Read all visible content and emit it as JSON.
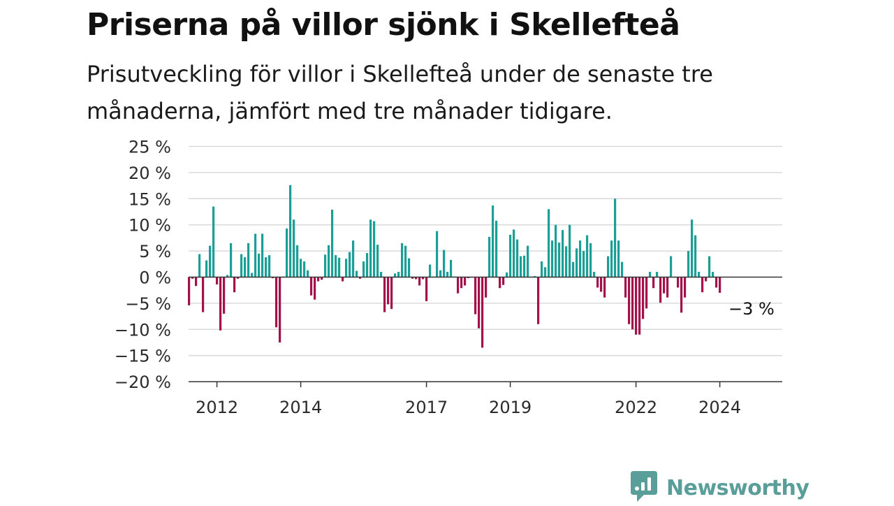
{
  "header": {
    "title": "Priserna på villor sjönk i Skellefteå",
    "subtitle": "Prisutveckling för villor i Skellefteå under de senaste tre månaderna, jämfört med tre månader tidigare."
  },
  "brand": {
    "name": "Newsworthy",
    "icon": "newsworthy-logo-icon",
    "color": "#5a9e9a"
  },
  "chart_data": {
    "type": "bar",
    "title": "Priserna på villor sjönk i Skellefteå",
    "subtitle": "Prisutveckling för villor i Skellefteå under de senaste tre månaderna, jämfört med tre månader tidigare.",
    "ylim": [
      -20,
      25
    ],
    "yticks": [
      25,
      20,
      15,
      10,
      5,
      0,
      -5,
      -10,
      -15,
      -20
    ],
    "ytick_labels": [
      "25 %",
      "20 %",
      "15 %",
      "10 %",
      "5 %",
      "0 %",
      "−5 %",
      "−10 %",
      "−15 %",
      "−20 %"
    ],
    "xticks": [
      {
        "label": "2012",
        "index": 8
      },
      {
        "label": "2014",
        "index": 32
      },
      {
        "label": "2017",
        "index": 68
      },
      {
        "label": "2019",
        "index": 92
      },
      {
        "label": "2022",
        "index": 128
      },
      {
        "label": "2024",
        "index": 152
      }
    ],
    "grid": true,
    "colors": {
      "positive": "#1a9e96",
      "negative": "#a3104a"
    },
    "annotation": {
      "text": "−3 %",
      "value": -3
    },
    "values": [
      -5.4,
      -0.3,
      -1.7,
      4.4,
      -6.7,
      3.2,
      6.0,
      13.5,
      -1.4,
      -10.2,
      -7.0,
      0.4,
      6.5,
      -2.9,
      -0.3,
      4.4,
      3.8,
      6.5,
      0.8,
      8.3,
      4.5,
      8.3,
      3.8,
      4.2,
      -0.2,
      -9.6,
      -12.5,
      0.1,
      9.3,
      17.6,
      11.0,
      6.1,
      3.5,
      3.0,
      1.3,
      -3.5,
      -4.3,
      -0.8,
      -0.5,
      4.3,
      6.1,
      12.9,
      4.2,
      3.7,
      -0.8,
      3.5,
      4.8,
      7.0,
      1.2,
      -0.3,
      3.0,
      4.6,
      11.0,
      10.7,
      6.2,
      1.0,
      -6.7,
      -5.2,
      -6.1,
      0.7,
      1.0,
      6.5,
      6.0,
      3.6,
      -0.3,
      -0.4,
      -1.6,
      -0.4,
      -4.6,
      2.4,
      0.1,
      8.8,
      1.3,
      5.2,
      1.0,
      3.3,
      0.1,
      -3.1,
      -2.1,
      -1.6,
      -0.2,
      0.0,
      -7.1,
      -9.8,
      -13.5,
      -3.9,
      7.7,
      13.7,
      10.8,
      -2.1,
      -1.5,
      0.9,
      8.1,
      9.1,
      7.2,
      4.0,
      4.1,
      6.0,
      0.1,
      0.2,
      -9.0,
      3.0,
      1.9,
      13.0,
      7.0,
      10.0,
      6.6,
      9.0,
      5.9,
      10.0,
      2.9,
      5.5,
      7.0,
      5.0,
      8.0,
      6.5,
      1.0,
      -2.0,
      -2.8,
      -3.9,
      4.0,
      7.0,
      15.0,
      7.0,
      2.9,
      -3.9,
      -9.0,
      -10.0,
      -11.0,
      -11.0,
      -8.0,
      -6.0,
      1.0,
      -2.1,
      1.0,
      -4.9,
      -3.1,
      -3.9,
      4.0,
      -0.1,
      -2.0,
      -6.8,
      -3.9,
      5.0,
      11.0,
      8.0,
      1.0,
      -2.9,
      -0.8,
      4.0,
      1.0,
      -2.0,
      -3.0
    ]
  }
}
